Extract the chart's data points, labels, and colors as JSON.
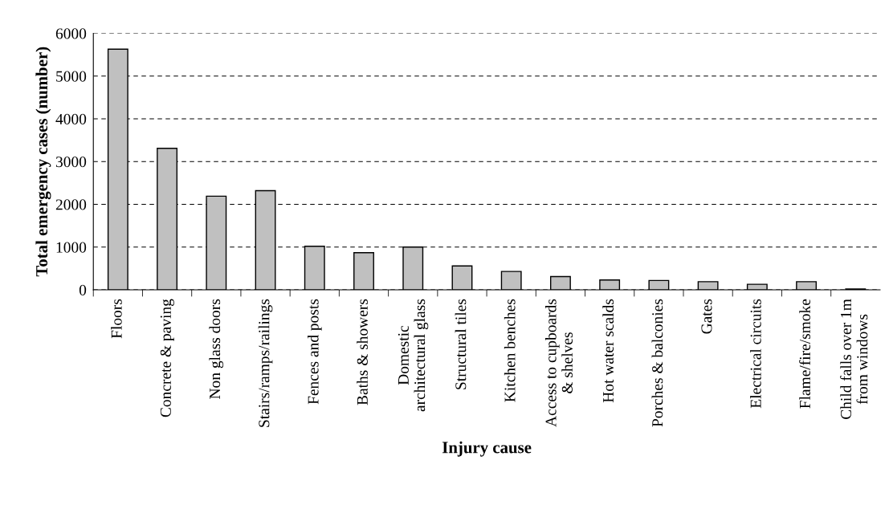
{
  "chart_data": {
    "type": "bar",
    "xlabel": "Injury cause",
    "ylabel": "Total emergency cases (number)",
    "categories": [
      "Floors",
      "Concrete & paving",
      "Non glass doors",
      "Stairs/ramps/railings",
      "Fences and posts",
      "Baths & showers",
      "Domestic\narchitectural glass",
      "Structural tiles",
      "Kitchen benches",
      "Access to cupboards\n& shelves",
      "Hot water scalds",
      "Porches & balconies",
      "Gates",
      "Electrical circuits",
      "Flame/fire/smoke",
      "Child falls over 1m\nfrom windows"
    ],
    "values": [
      5630,
      3310,
      2190,
      2320,
      1020,
      870,
      1000,
      560,
      430,
      310,
      230,
      220,
      190,
      130,
      190,
      20
    ],
    "color": "#c0c0c0",
    "ylim": [
      0,
      6000
    ],
    "yticks": [
      0,
      1000,
      2000,
      3000,
      4000,
      5000,
      6000
    ],
    "grid": "y",
    "legend": false
  }
}
